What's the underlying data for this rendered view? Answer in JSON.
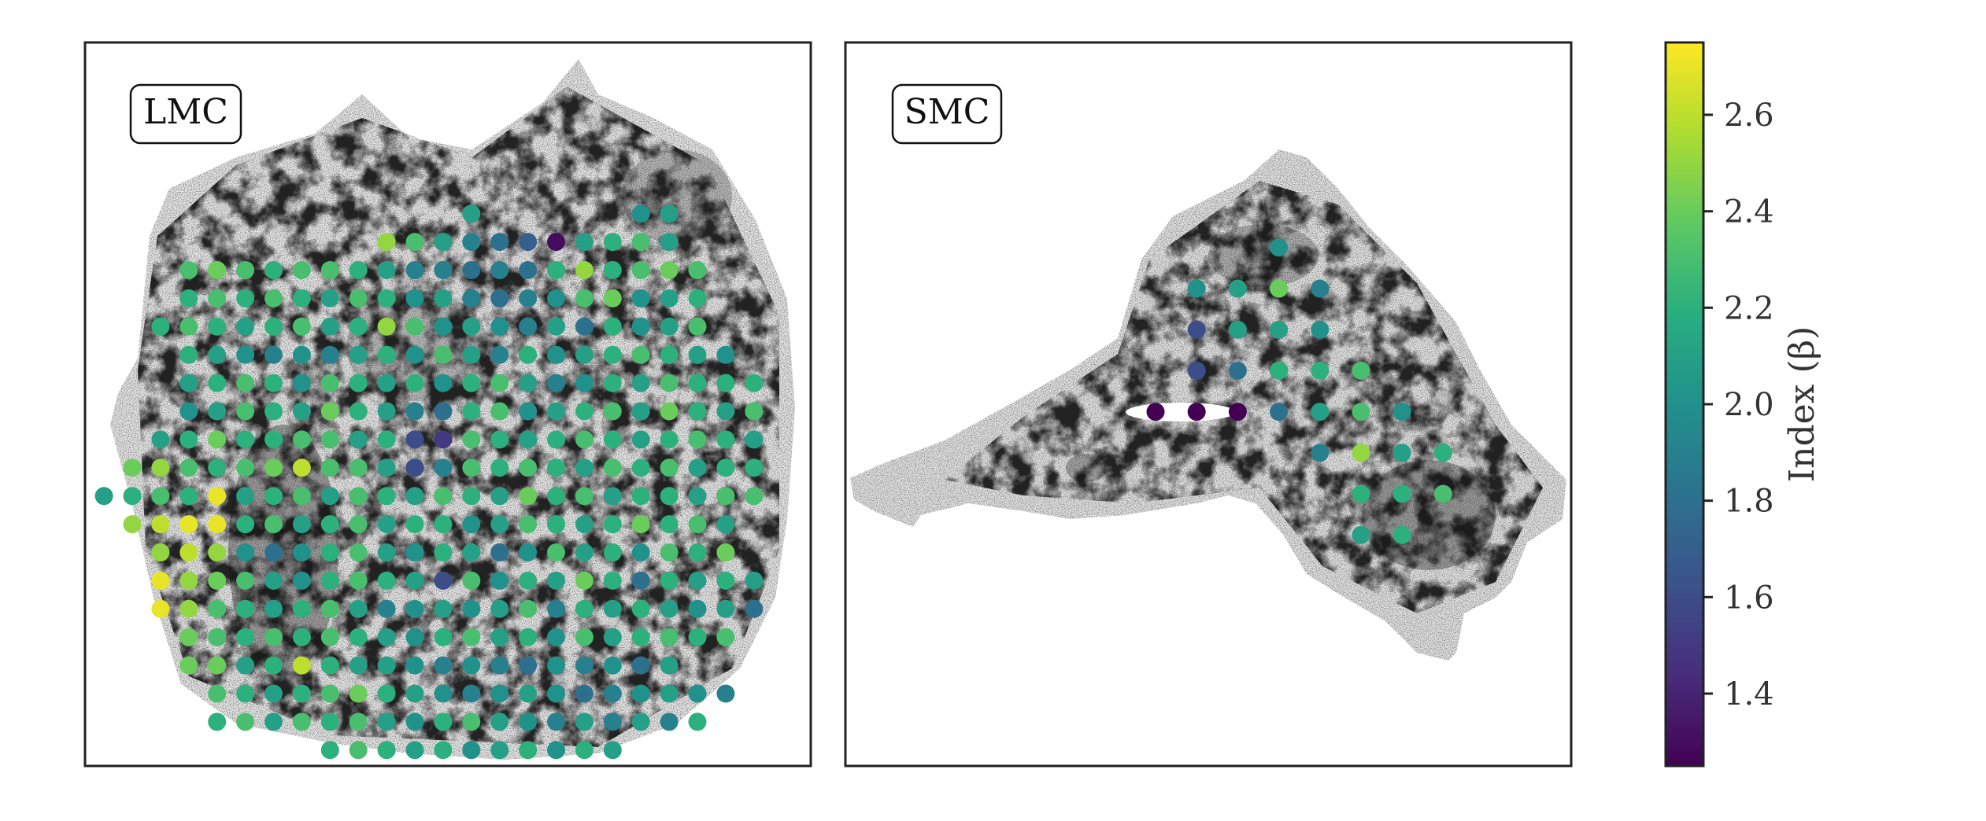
{
  "chart_data": [
    {
      "type": "scatter",
      "panel_label": "LMC",
      "grid": false,
      "legend": "none",
      "background": "grayscale column-density map",
      "marker_color_scale": "viridis",
      "rows": [
        {
          "y": 17,
          "cols": [
            12,
            18,
            19
          ],
          "values": [
            2.1,
            2.0,
            2.1
          ]
        },
        {
          "y": 16,
          "cols": [
            9,
            10,
            11,
            12,
            13,
            14,
            15,
            16,
            17,
            18,
            19
          ],
          "values": [
            2.5,
            2.3,
            2.1,
            1.9,
            1.8,
            1.7,
            1.3,
            2.1,
            2.2,
            2.3,
            2.1
          ]
        },
        {
          "y": 15,
          "cols": [
            2,
            3,
            4,
            5,
            6,
            7,
            8,
            9,
            10,
            11,
            12,
            13,
            14,
            15,
            16,
            17,
            18,
            19,
            20
          ],
          "values": [
            2.3,
            2.4,
            2.3,
            2.2,
            2.3,
            2.3,
            2.2,
            2.1,
            1.9,
            1.9,
            1.8,
            1.9,
            1.8,
            2.2,
            2.5,
            2.2,
            2.3,
            2.4,
            2.3
          ]
        },
        {
          "y": 14,
          "cols": [
            2,
            3,
            4,
            5,
            6,
            7,
            8,
            9,
            10,
            11,
            12,
            13,
            14,
            15,
            16,
            17,
            18,
            19,
            20
          ],
          "values": [
            2.2,
            2.3,
            2.2,
            2.3,
            2.2,
            2.1,
            2.3,
            2.2,
            2.0,
            2.1,
            1.9,
            1.8,
            1.9,
            2.0,
            2.3,
            2.4,
            2.0,
            2.1,
            2.2
          ]
        },
        {
          "y": 13,
          "cols": [
            1,
            2,
            3,
            4,
            5,
            6,
            7,
            8,
            9,
            10,
            11,
            12,
            13,
            14,
            15,
            16,
            17,
            18,
            19,
            20
          ],
          "values": [
            2.2,
            2.3,
            2.2,
            2.1,
            2.2,
            2.3,
            2.1,
            2.2,
            2.5,
            2.3,
            2.0,
            2.1,
            2.0,
            1.9,
            2.1,
            1.8,
            2.2,
            2.0,
            2.1,
            2.3
          ]
        },
        {
          "y": 12,
          "cols": [
            2,
            3,
            4,
            5,
            6,
            7,
            8,
            9,
            10,
            11,
            12,
            13,
            14,
            15,
            16,
            17,
            18,
            19,
            20,
            21
          ],
          "values": [
            2.2,
            2.1,
            2.0,
            1.9,
            2.0,
            1.9,
            2.1,
            2.2,
            2.0,
            2.3,
            2.1,
            1.9,
            2.2,
            2.0,
            2.1,
            2.2,
            2.3,
            2.2,
            2.1,
            2.0
          ]
        },
        {
          "y": 11,
          "cols": [
            2,
            3,
            4,
            5,
            6,
            7,
            8,
            9,
            10,
            11,
            12,
            13,
            14,
            15,
            16,
            17,
            18,
            19,
            20,
            21,
            22
          ],
          "values": [
            2.1,
            2.2,
            2.3,
            2.2,
            2.0,
            2.3,
            2.2,
            2.1,
            2.2,
            2.0,
            2.2,
            2.3,
            2.1,
            1.9,
            2.0,
            2.2,
            2.1,
            2.3,
            2.2,
            2.2,
            2.2
          ]
        },
        {
          "y": 10,
          "cols": [
            2,
            3,
            4,
            5,
            6,
            7,
            8,
            9,
            10,
            11,
            12,
            13,
            14,
            15,
            16,
            17,
            18,
            19,
            20,
            21,
            22
          ],
          "values": [
            2.0,
            2.1,
            2.3,
            2.2,
            2.1,
            2.4,
            2.2,
            2.1,
            1.9,
            1.8,
            2.2,
            2.3,
            2.0,
            2.1,
            2.2,
            2.3,
            2.1,
            2.4,
            2.2,
            2.1,
            2.3
          ]
        },
        {
          "y": 9,
          "cols": [
            1,
            2,
            3,
            4,
            5,
            6,
            7,
            8,
            9,
            10,
            11,
            12,
            13,
            14,
            15,
            16,
            17,
            18,
            19,
            20,
            21,
            22
          ],
          "values": [
            2.1,
            2.2,
            2.4,
            2.2,
            2.2,
            2.3,
            2.3,
            2.1,
            2.2,
            1.6,
            1.5,
            2.3,
            2.2,
            2.1,
            2.2,
            2.3,
            2.2,
            2.1,
            2.2,
            2.3,
            2.2,
            2.1
          ]
        },
        {
          "y": 8,
          "cols": [
            0,
            1,
            2,
            3,
            4,
            5,
            6,
            7,
            8,
            9,
            10,
            11,
            12,
            13,
            14,
            15,
            16,
            17,
            18,
            19,
            20,
            21,
            22
          ],
          "values": [
            2.4,
            2.5,
            2.3,
            2.2,
            2.3,
            2.4,
            2.6,
            2.3,
            2.3,
            2.1,
            1.6,
            1.9,
            2.3,
            2.2,
            2.3,
            2.2,
            2.1,
            2.3,
            2.2,
            2.3,
            2.1,
            2.2,
            2.2
          ]
        },
        {
          "y": 7,
          "cols": [
            -1,
            0,
            1,
            2,
            3,
            4,
            5,
            6,
            7,
            8,
            9,
            10,
            11,
            12,
            13,
            14,
            15,
            16,
            17,
            18,
            19,
            20,
            21,
            22
          ],
          "values": [
            2.1,
            2.2,
            2.3,
            2.2,
            2.7,
            2.1,
            2.2,
            2.3,
            2.1,
            2.3,
            2.2,
            2.1,
            2.3,
            2.2,
            2.1,
            2.4,
            2.2,
            2.3,
            2.1,
            2.2,
            2.2,
            2.1,
            2.3,
            2.3
          ]
        },
        {
          "y": 6,
          "cols": [
            0,
            1,
            2,
            3,
            4,
            5,
            6,
            7,
            8,
            9,
            10,
            11,
            12,
            13,
            14,
            15,
            16,
            17,
            18,
            19,
            20,
            21
          ],
          "values": [
            2.5,
            2.6,
            2.7,
            2.7,
            2.2,
            2.3,
            2.1,
            2.2,
            2.3,
            2.1,
            2.2,
            2.2,
            2.0,
            2.1,
            2.3,
            2.2,
            2.1,
            2.2,
            2.4,
            2.2,
            2.3,
            2.1
          ]
        },
        {
          "y": 5,
          "cols": [
            1,
            2,
            3,
            4,
            5,
            6,
            7,
            8,
            9,
            10,
            11,
            12,
            13,
            14,
            15,
            16,
            17,
            18,
            19,
            20,
            21
          ],
          "values": [
            2.5,
            2.6,
            2.5,
            2.0,
            1.8,
            2.0,
            2.2,
            2.3,
            2.1,
            2.0,
            2.2,
            2.1,
            1.8,
            2.0,
            2.3,
            2.1,
            2.2,
            2.0,
            2.3,
            2.2,
            2.4
          ]
        },
        {
          "y": 4,
          "cols": [
            1,
            2,
            3,
            4,
            5,
            6,
            7,
            8,
            9,
            10,
            11,
            12,
            13,
            14,
            15,
            16,
            17,
            18,
            19,
            20,
            21,
            22
          ],
          "values": [
            2.7,
            2.5,
            2.4,
            2.3,
            2.1,
            2.0,
            2.2,
            2.3,
            2.2,
            2.1,
            1.6,
            2.3,
            2.0,
            2.2,
            2.1,
            2.4,
            2.2,
            1.8,
            2.2,
            2.1,
            2.2,
            2.1
          ]
        },
        {
          "y": 3,
          "cols": [
            1,
            2,
            3,
            4,
            5,
            6,
            7,
            8,
            9,
            10,
            11,
            12,
            13,
            14,
            15,
            16,
            17,
            18,
            19,
            20,
            21,
            22
          ],
          "values": [
            2.7,
            2.5,
            2.3,
            2.2,
            2.1,
            2.2,
            2.3,
            2.1,
            1.9,
            2.0,
            2.1,
            2.0,
            2.1,
            2.3,
            1.9,
            2.2,
            2.1,
            2.2,
            2.1,
            2.0,
            2.1,
            1.8
          ]
        },
        {
          "y": 2,
          "cols": [
            2,
            3,
            4,
            5,
            6,
            7,
            8,
            9,
            10,
            11,
            12,
            13,
            14,
            15,
            16,
            17,
            18,
            19,
            20,
            21
          ],
          "values": [
            2.4,
            2.3,
            2.2,
            2.3,
            2.2,
            2.3,
            2.2,
            2.1,
            2.0,
            2.2,
            2.3,
            2.1,
            2.2,
            2.0,
            2.3,
            2.1,
            2.2,
            2.3,
            2.2,
            2.3
          ]
        },
        {
          "y": 1,
          "cols": [
            2,
            3,
            4,
            5,
            6,
            7,
            8,
            9,
            10,
            11,
            12,
            13,
            14,
            15,
            16,
            17,
            18,
            19
          ],
          "values": [
            2.4,
            2.4,
            2.1,
            2.2,
            2.6,
            2.2,
            2.1,
            2.1,
            2.0,
            1.9,
            2.0,
            1.9,
            1.8,
            2.0,
            1.9,
            2.0,
            1.8,
            2.1
          ]
        },
        {
          "y": 0,
          "cols": [
            3,
            4,
            5,
            6,
            7,
            8,
            9,
            10,
            11,
            12,
            13,
            14,
            15,
            16,
            17,
            18,
            19,
            20,
            21
          ],
          "values": [
            2.3,
            2.2,
            2.1,
            2.2,
            2.3,
            2.4,
            2.2,
            2.1,
            2.0,
            1.9,
            2.0,
            2.1,
            2.0,
            1.8,
            1.9,
            2.0,
            2.1,
            2.0,
            1.9
          ]
        },
        {
          "y": -1,
          "cols": [
            3,
            4,
            5,
            6,
            7,
            8,
            9,
            10,
            11,
            12,
            13,
            14,
            15,
            16,
            17,
            18,
            19,
            20
          ],
          "values": [
            2.2,
            2.3,
            2.1,
            2.3,
            2.2,
            2.3,
            2.1,
            2.0,
            2.2,
            2.3,
            2.1,
            2.0,
            1.9,
            2.1,
            1.9,
            2.1,
            1.9,
            2.2
          ]
        },
        {
          "y": -2,
          "cols": [
            7,
            8,
            9,
            10,
            11,
            12,
            13,
            14,
            15,
            16,
            17
          ],
          "values": [
            2.2,
            2.3,
            2.2,
            2.1,
            2.2,
            2.0,
            2.1,
            2.2,
            2.0,
            2.2,
            2.1
          ]
        }
      ]
    },
    {
      "type": "scatter",
      "panel_label": "SMC",
      "grid": false,
      "legend": "none",
      "background": "grayscale column-density map",
      "marker_color_scale": "viridis",
      "rows": [
        {
          "y": 6,
          "cols": [
            3
          ],
          "values": [
            2.0
          ]
        },
        {
          "y": 5,
          "cols": [
            1,
            2,
            3,
            4
          ],
          "values": [
            2.0,
            2.1,
            2.4,
            1.9
          ]
        },
        {
          "y": 4,
          "cols": [
            1,
            2,
            3,
            4
          ],
          "values": [
            1.6,
            2.1,
            2.1,
            2.0
          ]
        },
        {
          "y": 3,
          "cols": [
            1,
            2,
            3,
            4,
            5
          ],
          "values": [
            1.6,
            1.8,
            2.2,
            2.2,
            2.3
          ]
        },
        {
          "y": 2,
          "cols": [
            0,
            1,
            2,
            3,
            4,
            5,
            6
          ],
          "values": [
            1.25,
            1.25,
            1.25,
            1.8,
            2.1,
            2.3,
            2.0
          ]
        },
        {
          "y": 1,
          "cols": [
            4,
            5,
            6,
            7
          ],
          "values": [
            1.9,
            2.5,
            2.1,
            2.2
          ]
        },
        {
          "y": 0,
          "cols": [
            5,
            6,
            7
          ],
          "values": [
            2.2,
            2.2,
            2.3
          ]
        },
        {
          "y": -1,
          "cols": [
            5,
            6
          ],
          "values": [
            2.1,
            2.2
          ]
        }
      ]
    }
  ],
  "colorbar": {
    "label": "Index (β)",
    "colormap": "viridis",
    "range": [
      1.25,
      2.75
    ],
    "ticks": [
      1.4,
      1.6,
      1.8,
      2.0,
      2.2,
      2.4,
      2.6
    ],
    "tick_labels": [
      "1.4",
      "1.6",
      "1.8",
      "2.0",
      "2.2",
      "2.4",
      "2.6"
    ]
  }
}
